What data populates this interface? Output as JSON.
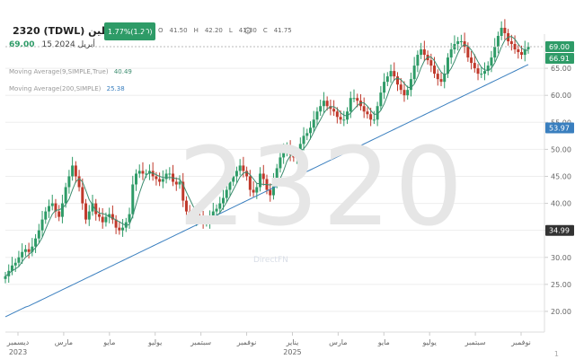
{
  "header": {
    "symbol": "2320 (TDWL) البابطين",
    "change_badge": "1.77%(1.20)",
    "open_label": "O",
    "open": "41.50",
    "high_label": "H",
    "high": "42.20",
    "low_label": "L",
    "low": "41.30",
    "close_label": "C",
    "close": "41.75",
    "last_price": "69.00",
    "last_date": "15 أبريل 2024"
  },
  "indicators": {
    "ma_short_label": "Moving Average(9,SIMPLE,True)",
    "ma_short_value": "40.49",
    "ma_long_label": "Moving Average(200,SIMPLE)",
    "ma_long_value": "25.38"
  },
  "watermark": {
    "code": "2320",
    "brand": "DirectFN"
  },
  "footer": {
    "page": "1"
  },
  "colors": {
    "up": "#2e9b67",
    "down": "#c0392b",
    "ma_short": "#3c8c6f",
    "ma_long": "#3a7fbf",
    "tag_green": "#2e9b67",
    "tag_blue": "#3a7fbf",
    "tag_dark": "#333333"
  },
  "icons": {
    "settings": "gear-icon",
    "up": "triangle-up-icon"
  },
  "chart_data": {
    "type": "line",
    "series": [
      {
        "x": [
          0,
          4,
          8,
          12,
          16,
          20,
          24,
          28,
          32,
          36,
          40,
          44,
          48,
          52,
          56,
          60,
          64,
          68,
          72,
          76,
          80,
          84,
          88,
          92,
          96,
          100,
          104,
          108,
          112,
          116,
          120,
          124,
          128,
          132,
          136,
          140,
          144,
          148,
          152,
          156,
          160,
          164,
          168,
          172,
          176,
          180,
          184,
          188,
          192,
          196,
          200,
          204,
          208,
          212,
          216,
          220,
          224,
          228,
          232,
          236,
          240,
          244,
          248,
          252,
          256,
          260,
          264,
          268,
          272,
          276,
          280,
          284,
          288,
          292,
          296,
          300,
          304,
          308,
          312,
          316,
          320,
          324,
          328,
          332,
          336,
          340,
          344,
          348,
          352,
          356,
          360,
          364,
          368,
          372,
          376,
          380,
          384,
          388,
          392,
          396,
          400,
          404,
          408,
          412,
          416,
          420,
          424,
          428,
          432,
          436,
          440,
          444,
          448,
          452,
          456,
          460,
          464,
          468,
          472,
          476,
          480,
          484,
          488,
          492,
          496,
          500,
          504,
          508,
          512,
          516,
          520,
          524,
          528,
          532,
          536,
          540,
          544,
          548,
          552,
          556,
          560,
          564,
          568,
          572,
          576,
          580,
          584,
          588,
          592,
          596,
          600,
          604,
          608,
          612,
          616,
          620,
          624
        ],
        "y": [
          26.5,
          27.5,
          28.5,
          29.0,
          30.0,
          31.0,
          31.5,
          31.0,
          32.0,
          33.5,
          35.0,
          37.0,
          38.5,
          39.5,
          40.0,
          38.5,
          37.5,
          40.0,
          43.0,
          45.0,
          47.0,
          45.0,
          43.0,
          40.0,
          37.0,
          38.5,
          40.0,
          38.0,
          37.5,
          36.5,
          37.5,
          38.0,
          37.0,
          35.5,
          35.0,
          35.5,
          36.5,
          38.0,
          43.5,
          45.5,
          46.0,
          45.5,
          45.5,
          46.0,
          45.0,
          44.5,
          44.0,
          44.5,
          45.5,
          45.5,
          44.0,
          43.5,
          44.0,
          40.5,
          38.5,
          37.5,
          37.0,
          37.5,
          37.0,
          36.5,
          36.5,
          37.5,
          38.5,
          39.0,
          40.0,
          41.0,
          42.5,
          44.0,
          45.0,
          46.0,
          47.0,
          46.0,
          45.0,
          42.5,
          42.0,
          43.0,
          45.5,
          44.5,
          42.5,
          41.5,
          44.0,
          46.5,
          48.5,
          49.5,
          50.5,
          49.0,
          48.5,
          49.5,
          51.0,
          52.5,
          53.0,
          54.0,
          55.5,
          57.0,
          58.0,
          59.0,
          58.0,
          57.5,
          57.0,
          56.0,
          55.5,
          55.5,
          57.0,
          59.5,
          59.5,
          59.0,
          58.0,
          57.0,
          56.5,
          55.5,
          55.5,
          58.0,
          60.5,
          62.5,
          63.5,
          64.5,
          63.5,
          62.0,
          61.0,
          60.0,
          61.0,
          63.0,
          65.5,
          67.5,
          68.5,
          67.5,
          66.5,
          65.5,
          64.0,
          63.0,
          62.5,
          64.0,
          67.0,
          68.5,
          69.5,
          70.0,
          70.0,
          69.0,
          67.0,
          66.0,
          65.0,
          64.0,
          64.0,
          64.5,
          65.5,
          67.0,
          69.0,
          71.0,
          72.5,
          71.5,
          70.0,
          69.5,
          68.5,
          68.0,
          67.5,
          68.5,
          69.0
        ]
      },
      {
        "y": [
          19.0,
          19.3,
          19.6,
          19.9,
          20.2,
          20.5,
          20.8,
          21.0,
          21.3,
          21.6,
          21.9,
          22.2,
          22.5,
          22.8,
          23.1,
          23.4,
          23.7,
          24.0,
          24.3,
          24.6,
          24.9,
          25.2,
          25.5,
          25.8,
          26.1,
          26.4,
          26.7,
          27.0,
          27.3,
          27.6,
          27.9,
          28.2,
          28.5,
          28.8,
          29.1,
          29.4,
          29.7,
          30.0,
          30.3,
          30.6,
          30.9,
          31.2,
          31.5,
          31.8,
          32.1,
          32.4,
          32.7,
          33.0,
          33.3,
          33.6,
          33.9,
          34.2,
          34.5,
          34.8,
          35.1,
          35.4,
          35.7,
          36.0,
          36.3,
          36.6,
          36.9,
          37.2,
          37.5,
          37.8,
          38.1,
          38.4,
          38.7,
          39.0,
          39.3,
          39.6,
          39.9,
          40.2,
          40.5,
          40.8,
          41.1,
          41.4,
          41.7,
          42.0,
          42.3,
          42.6,
          42.9,
          43.2,
          43.5,
          43.8,
          44.1,
          44.4,
          44.7,
          45.0,
          45.3,
          45.6,
          45.9,
          46.2,
          46.5,
          46.8,
          47.1,
          47.4,
          47.7,
          48.0,
          48.3,
          48.6,
          48.9,
          49.2,
          49.5,
          49.8,
          50.1,
          50.4,
          50.7,
          51.0,
          51.3,
          51.6,
          51.9,
          52.2,
          52.5,
          52.8,
          53.1,
          53.4,
          53.7,
          54.0,
          54.3,
          54.6,
          54.9,
          55.2,
          55.5,
          55.8,
          56.1,
          56.4,
          56.7,
          57.0,
          57.3,
          57.6,
          57.9,
          58.2,
          58.5,
          58.8,
          59.1,
          59.4,
          59.7,
          60.0,
          60.3,
          60.6,
          60.9,
          61.2,
          61.5,
          61.8,
          62.1,
          62.4,
          62.7,
          63.0,
          63.3,
          63.6,
          63.9,
          64.2,
          64.5,
          64.8,
          65.1,
          65.4,
          65.7,
          66.0,
          66.3,
          66.6,
          66.9
        ]
      }
    ],
    "yticks": [
      "20.00",
      "25.00",
      "30.00",
      "35.00",
      "40.00",
      "45.00",
      "50.00",
      "55.00",
      "60.00",
      "65.00"
    ],
    "xticks": [
      "ديسمبر",
      "مارس",
      "مايو",
      "يوليو",
      "سبتمبر",
      "نوفمبر",
      "يناير",
      "مارس",
      "مايو",
      "يوليو",
      "سبتمبر",
      "نوفمبر"
    ],
    "year_labels": [
      "2023",
      "2025"
    ],
    "ylim": [
      16.5,
      71.0
    ],
    "price_tags": [
      "69.00",
      "66.91",
      "53.97",
      "34.99"
    ],
    "grid": true
  }
}
